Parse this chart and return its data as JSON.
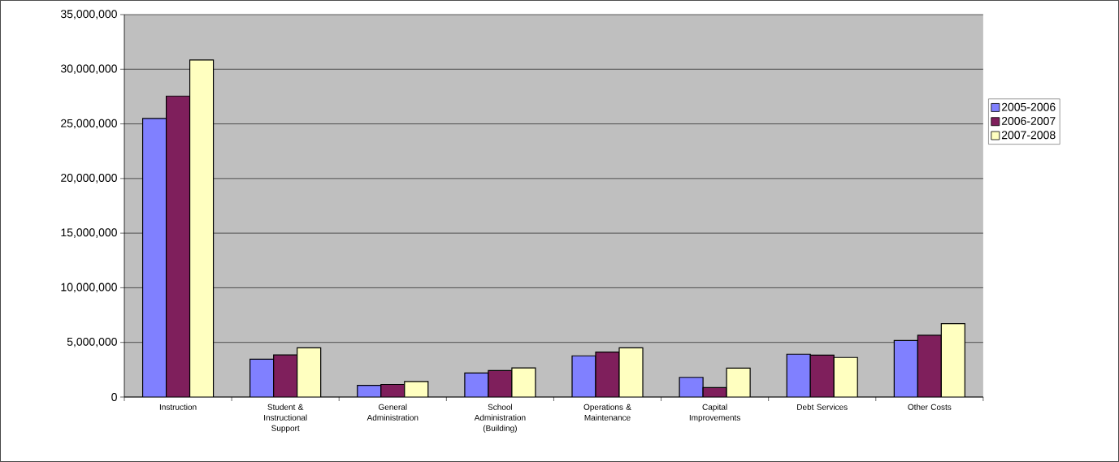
{
  "chart_data": {
    "type": "bar",
    "categories": [
      "Instruction",
      "Student & Instructional Support",
      "General Administration",
      "School Administration (Building)",
      "Operations & Maintenance",
      "Capital Improvements",
      "Debt Services",
      "Other Costs"
    ],
    "series": [
      {
        "name": "2005-2006",
        "color": "#8080ff",
        "values": [
          25500000,
          3470000,
          1070000,
          2200000,
          3770000,
          1800000,
          3920000,
          5170000
        ]
      },
      {
        "name": "2006-2007",
        "color": "#7f1f5c",
        "values": [
          27550000,
          3850000,
          1150000,
          2420000,
          4120000,
          870000,
          3830000,
          5650000
        ]
      },
      {
        "name": "2007-2008",
        "color": "#ffffc0",
        "values": [
          30850000,
          4500000,
          1420000,
          2670000,
          4500000,
          2650000,
          3620000,
          6720000
        ]
      }
    ],
    "ylim": [
      0,
      35000000
    ],
    "yticks": [
      0,
      {
        "value": 5000000,
        "label": "5,000,000"
      },
      {
        "value": 10000000,
        "label": "10,000,000"
      },
      {
        "value": 15000000,
        "label": "15,000,000"
      },
      {
        "value": 20000000,
        "label": "20,000,000"
      },
      {
        "value": 25000000,
        "label": "25,000,000"
      },
      {
        "value": 30000000,
        "label": "30,000,000"
      },
      {
        "value": 35000000,
        "label": "35,000,000"
      }
    ],
    "grid": "y",
    "legend": "right"
  }
}
